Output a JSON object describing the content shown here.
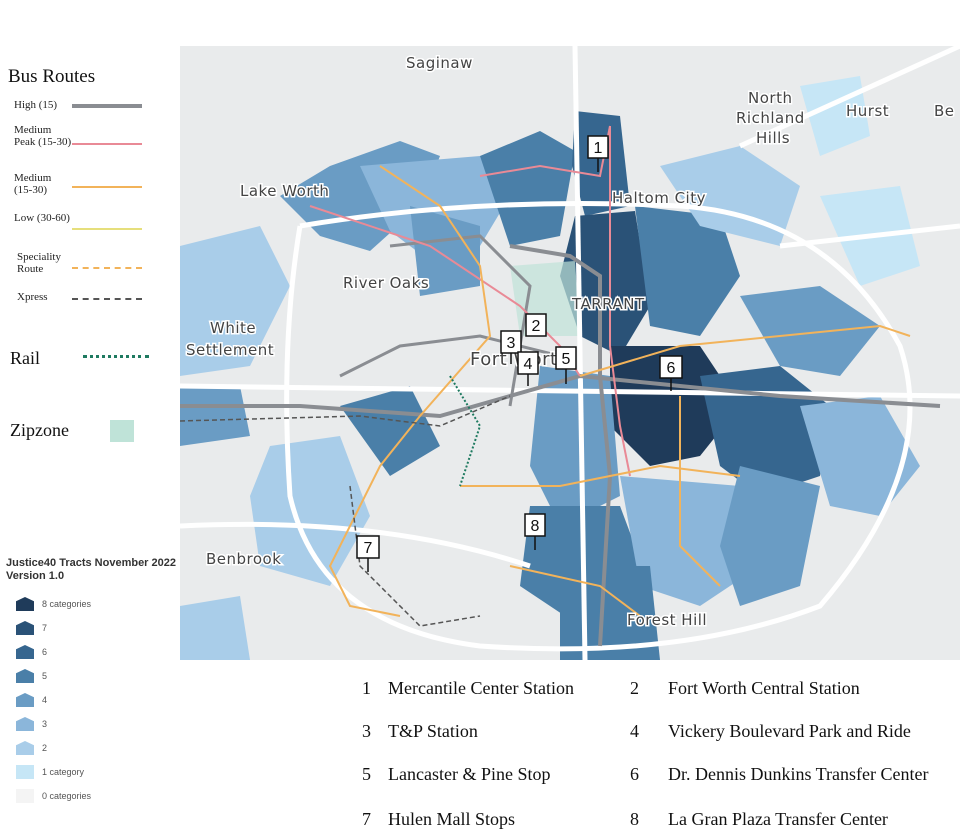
{
  "legend": {
    "title": "Bus Routes",
    "routes": [
      {
        "label": "High (15)",
        "color": "#8a8d92",
        "style": "solid"
      },
      {
        "label": "Medium Peak (15-30)",
        "color": "#e98a96",
        "style": "solid"
      },
      {
        "label": "Medium (15-30)",
        "color": "#f2b35a",
        "style": "solid"
      },
      {
        "label": "Low (30-60)",
        "color": "#e6df7c",
        "style": "solid"
      },
      {
        "label": "Speciality Route",
        "color": "#f2b35a",
        "style": "dashed"
      },
      {
        "label": "Xpress",
        "color": "#555555",
        "style": "dashed"
      }
    ],
    "rail_label": "Rail",
    "rail_color": "#1e7a60",
    "zipzone_label": "Zipzone",
    "zipzone_color": "#bfe3d8"
  },
  "justice40": {
    "title_line1": "Justice40 Tracts November 2022",
    "title_line2": "Version 1.0",
    "categories": [
      {
        "label": "8 categories",
        "color": "#1f3b5a"
      },
      {
        "label": "7",
        "color": "#2a5277"
      },
      {
        "label": "6",
        "color": "#36668f"
      },
      {
        "label": "5",
        "color": "#4a7fa8"
      },
      {
        "label": "4",
        "color": "#6a9cc4"
      },
      {
        "label": "3",
        "color": "#8bb6da"
      },
      {
        "label": "2",
        "color": "#a9cde9"
      },
      {
        "label": "1 category",
        "color": "#c6e6f6"
      },
      {
        "label": "0 categories",
        "color": "#f4f4f4"
      }
    ]
  },
  "map": {
    "place_labels": {
      "saginaw": "Saginaw",
      "north_richland_1": "North",
      "north_richland_2": "Richland",
      "north_richland_3": "Hills",
      "hurst": "Hurst",
      "bedford": "Be",
      "lake_worth": "Lake Worth",
      "haltom_city": "Haltom City",
      "river_oaks": "River Oaks",
      "tarrant": "TARRANT",
      "white_settlement_1": "White",
      "white_settlement_2": "Settlement",
      "fort_worth": "Fort Worth",
      "benbrook": "Benbrook",
      "forest_hill": "Forest Hill"
    },
    "markers": [
      "1",
      "2",
      "3",
      "4",
      "5",
      "6",
      "7",
      "8"
    ]
  },
  "stations": [
    {
      "num": "1",
      "name": "Mercantile Center Station"
    },
    {
      "num": "2",
      "name": "Fort Worth Central Station"
    },
    {
      "num": "3",
      "name": "T&P Station"
    },
    {
      "num": "4",
      "name": "Vickery Boulevard Park and Ride"
    },
    {
      "num": "5",
      "name": "Lancaster & Pine Stop"
    },
    {
      "num": "6",
      "name": "Dr. Dennis Dunkins Transfer Center"
    },
    {
      "num": "7",
      "name": "Hulen Mall Stops"
    },
    {
      "num": "8",
      "name": "La Gran Plaza Transfer Center"
    }
  ]
}
